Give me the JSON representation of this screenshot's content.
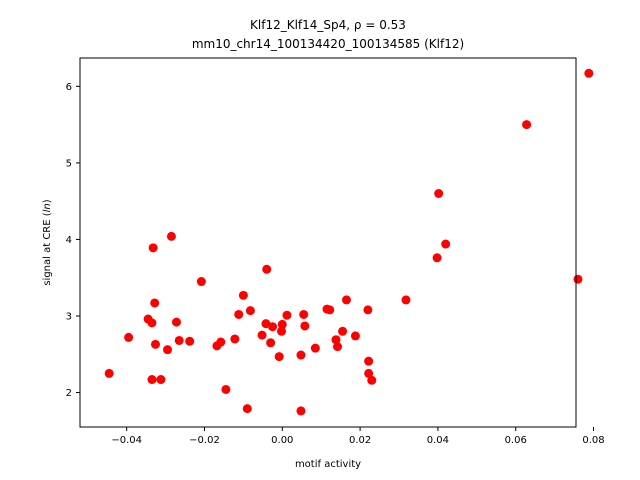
{
  "chart_data": {
    "type": "scatter",
    "title_line1": "Klf12_Klf14_Sp4, ρ = 0.53",
    "title_line2": "mm10_chr14_100134420_100134585 (Klf12)",
    "xlabel": "motif activity",
    "ylabel_prefix": "signal at CRE (",
    "ylabel_italic": "ln",
    "ylabel_suffix": ")",
    "xlim": [
      -0.052,
      0.0755
    ],
    "ylim": [
      1.55,
      6.37
    ],
    "xticks": [
      -0.04,
      -0.02,
      0.0,
      0.02,
      0.04,
      0.06,
      0.08
    ],
    "xtick_labels": [
      "−0.04",
      "−0.02",
      "0.00",
      "0.02",
      "0.04",
      "0.06",
      "0.08"
    ],
    "yticks": [
      2,
      3,
      4,
      5,
      6
    ],
    "ytick_labels": [
      "2",
      "3",
      "4",
      "5",
      "6"
    ],
    "marker_color": "#ff0000",
    "grid": false,
    "points": [
      {
        "x": -0.0445,
        "y": 2.25
      },
      {
        "x": -0.0395,
        "y": 2.72
      },
      {
        "x": -0.0345,
        "y": 2.96
      },
      {
        "x": -0.0335,
        "y": 2.91
      },
      {
        "x": -0.0335,
        "y": 2.17
      },
      {
        "x": -0.0332,
        "y": 3.89
      },
      {
        "x": -0.0328,
        "y": 3.17
      },
      {
        "x": -0.0326,
        "y": 2.63
      },
      {
        "x": -0.0312,
        "y": 2.17
      },
      {
        "x": -0.0295,
        "y": 2.56
      },
      {
        "x": -0.0285,
        "y": 4.04
      },
      {
        "x": -0.0272,
        "y": 2.92
      },
      {
        "x": -0.0265,
        "y": 2.68
      },
      {
        "x": -0.0238,
        "y": 2.67
      },
      {
        "x": -0.0208,
        "y": 3.45
      },
      {
        "x": -0.0168,
        "y": 2.61
      },
      {
        "x": -0.0158,
        "y": 2.66
      },
      {
        "x": -0.0145,
        "y": 2.04
      },
      {
        "x": -0.0122,
        "y": 2.7
      },
      {
        "x": -0.0112,
        "y": 3.02
      },
      {
        "x": -0.01,
        "y": 3.27
      },
      {
        "x": -0.009,
        "y": 1.79
      },
      {
        "x": -0.0082,
        "y": 3.07
      },
      {
        "x": -0.0052,
        "y": 2.75
      },
      {
        "x": -0.0042,
        "y": 2.9
      },
      {
        "x": -0.004,
        "y": 3.61
      },
      {
        "x": -0.003,
        "y": 2.65
      },
      {
        "x": -0.0025,
        "y": 2.86
      },
      {
        "x": -0.0008,
        "y": 2.47
      },
      {
        "x": -0.0002,
        "y": 2.8
      },
      {
        "x": 0.0,
        "y": 2.89
      },
      {
        "x": 0.0012,
        "y": 3.01
      },
      {
        "x": 0.0048,
        "y": 1.76
      },
      {
        "x": 0.0048,
        "y": 2.49
      },
      {
        "x": 0.0055,
        "y": 3.02
      },
      {
        "x": 0.0058,
        "y": 2.87
      },
      {
        "x": 0.0085,
        "y": 2.58
      },
      {
        "x": 0.0115,
        "y": 3.09
      },
      {
        "x": 0.0122,
        "y": 3.08
      },
      {
        "x": 0.0138,
        "y": 2.69
      },
      {
        "x": 0.0142,
        "y": 2.6
      },
      {
        "x": 0.0155,
        "y": 2.8
      },
      {
        "x": 0.0165,
        "y": 3.21
      },
      {
        "x": 0.0188,
        "y": 2.74
      },
      {
        "x": 0.022,
        "y": 3.08
      },
      {
        "x": 0.0222,
        "y": 2.41
      },
      {
        "x": 0.0222,
        "y": 2.25
      },
      {
        "x": 0.023,
        "y": 2.16
      },
      {
        "x": 0.0318,
        "y": 3.21
      },
      {
        "x": 0.0398,
        "y": 3.76
      },
      {
        "x": 0.0402,
        "y": 4.6
      },
      {
        "x": 0.042,
        "y": 3.94
      },
      {
        "x": 0.0628,
        "y": 5.5
      },
      {
        "x": 0.076,
        "y": 3.48
      },
      {
        "x": 0.0788,
        "y": 6.17
      }
    ]
  }
}
